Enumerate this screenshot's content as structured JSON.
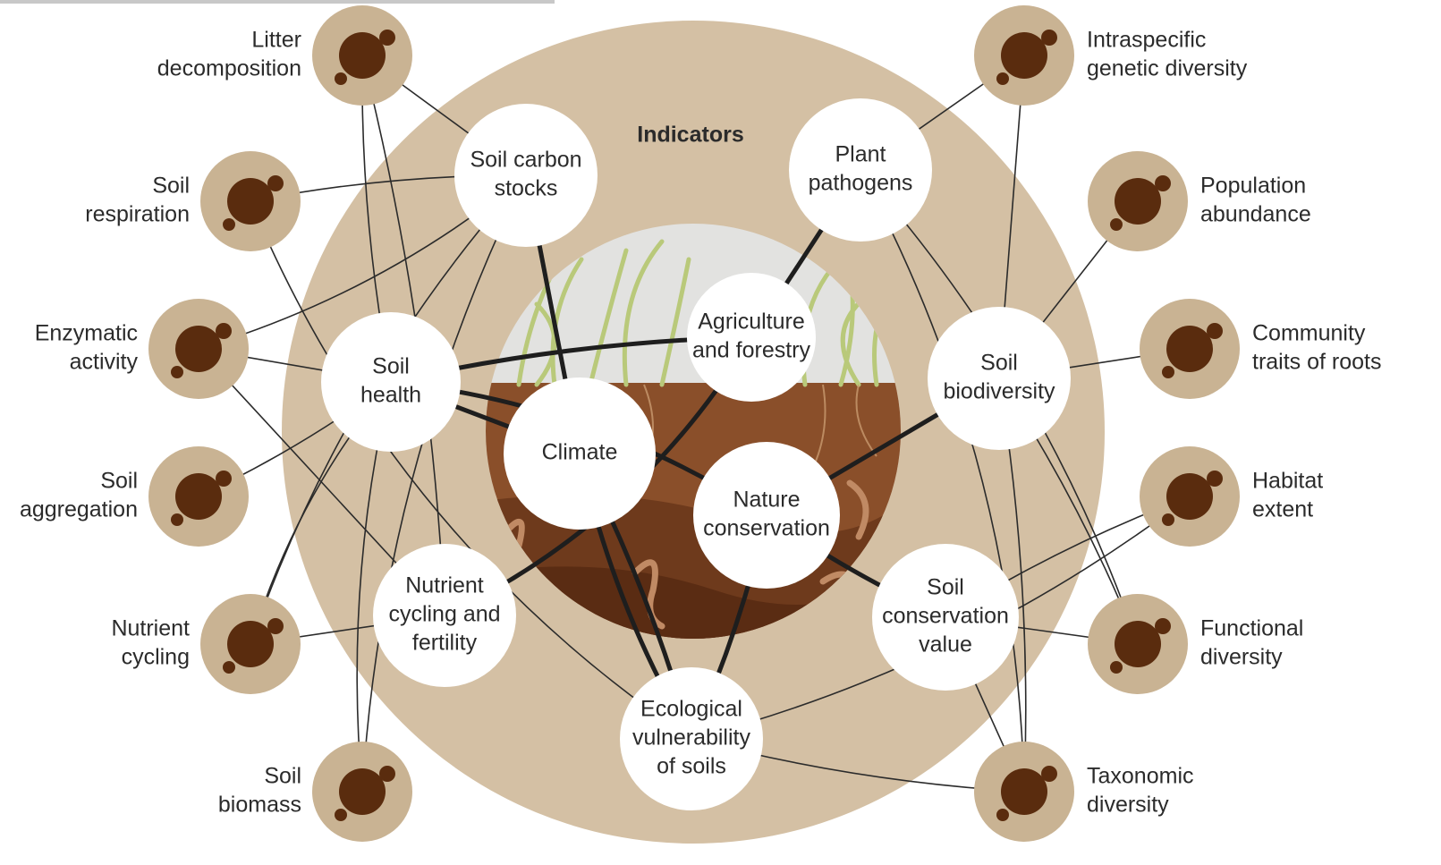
{
  "title": "Indicators",
  "drivers": [
    {
      "lines": [
        "Climate"
      ]
    },
    {
      "lines": [
        "Agriculture",
        "and forestry"
      ]
    },
    {
      "lines": [
        "Nature",
        "conservation"
      ]
    }
  ],
  "indicators": [
    {
      "lines": [
        "Soil carbon",
        "stocks"
      ]
    },
    {
      "lines": [
        "Plant",
        "pathogens"
      ]
    },
    {
      "lines": [
        "Soil",
        "health"
      ]
    },
    {
      "lines": [
        "Soil",
        "biodiversity"
      ]
    },
    {
      "lines": [
        "Nutrient",
        "cycling and",
        "fertility"
      ]
    },
    {
      "lines": [
        "Soil",
        "conservation",
        "value"
      ]
    },
    {
      "lines": [
        "Ecological",
        "vulnerability",
        "of soils"
      ]
    }
  ],
  "measurements": [
    {
      "lines": [
        "Litter",
        "decomposition"
      ]
    },
    {
      "lines": [
        "Soil",
        "respiration"
      ]
    },
    {
      "lines": [
        "Enzymatic",
        "activity"
      ]
    },
    {
      "lines": [
        "Soil",
        "aggregation"
      ]
    },
    {
      "lines": [
        "Nutrient",
        "cycling"
      ]
    },
    {
      "lines": [
        "Soil",
        "biomass"
      ]
    },
    {
      "lines": [
        "Intraspecific",
        "genetic diversity"
      ]
    },
    {
      "lines": [
        "Population",
        "abundance"
      ]
    },
    {
      "lines": [
        "Community",
        "traits of roots"
      ]
    },
    {
      "lines": [
        "Habitat",
        "extent"
      ]
    },
    {
      "lines": [
        "Functional",
        "diversity"
      ]
    },
    {
      "lines": [
        "Taxonomic",
        "diversity"
      ]
    }
  ]
}
